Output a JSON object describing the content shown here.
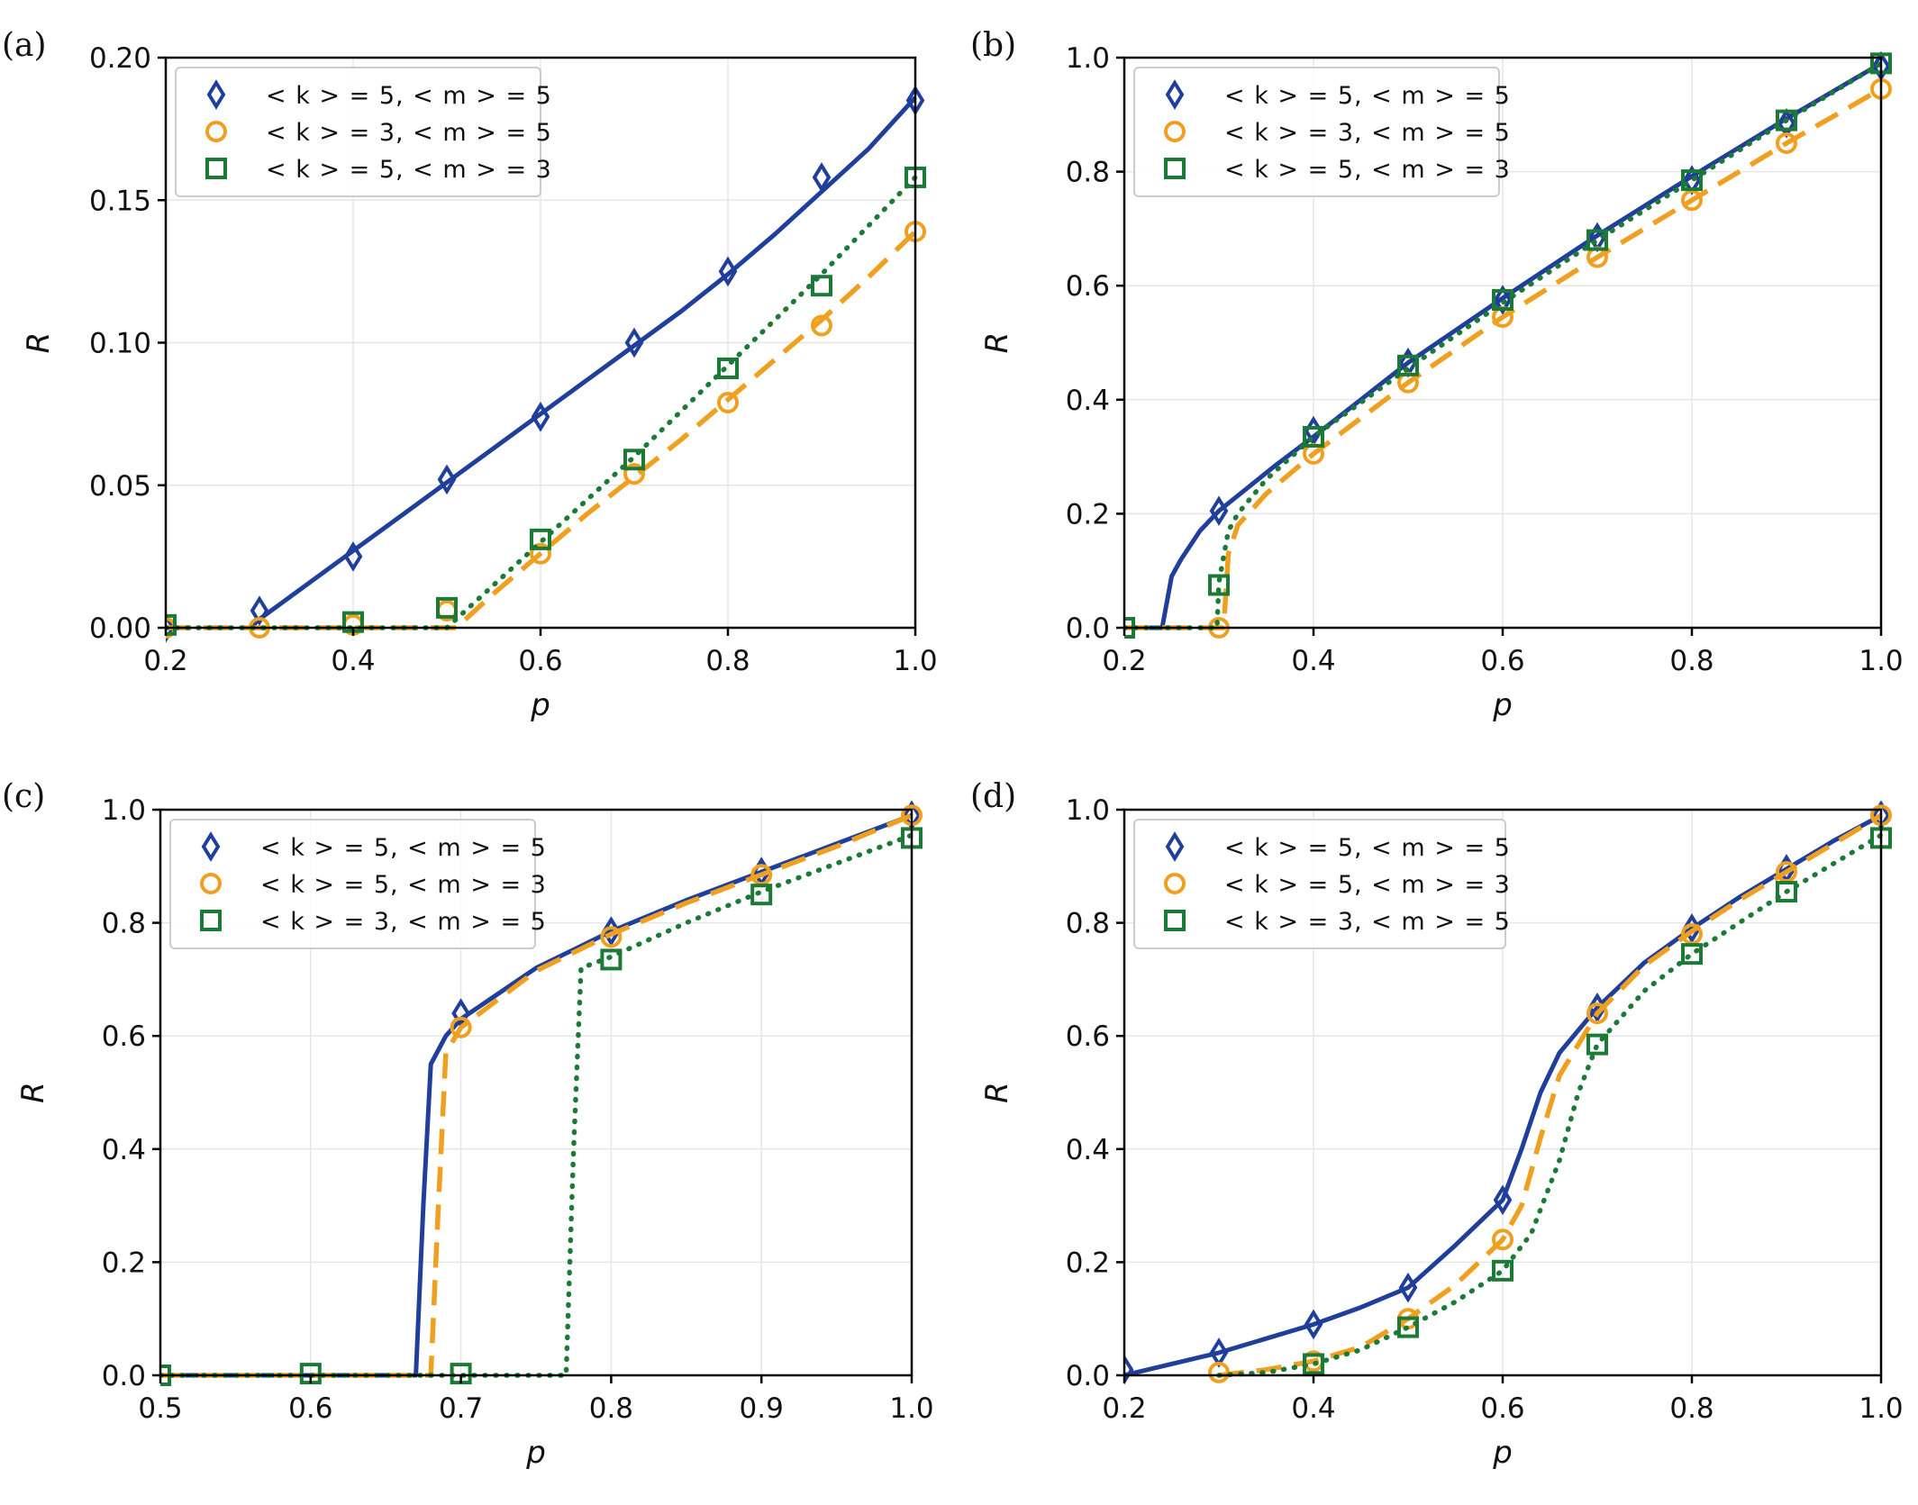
{
  "colors": {
    "blue": "#1f3f9a",
    "orange": "#f0a020",
    "green": "#1b7a35",
    "grid": "#e6e6e6",
    "axis": "#000000"
  },
  "chart_data": [
    {
      "panel": "(a)",
      "type": "line",
      "xlabel": "p",
      "ylabel": "R",
      "xlim": [
        0.2,
        1.0
      ],
      "ylim": [
        0.0,
        0.2
      ],
      "xticks": [
        "0.2",
        "0.4",
        "0.6",
        "0.8",
        "1.0"
      ],
      "yticks": [
        "0.00",
        "0.05",
        "0.10",
        "0.15",
        "0.20"
      ],
      "xtick_values": [
        0.2,
        0.4,
        0.6,
        0.8,
        1.0
      ],
      "ytick_values": [
        0.0,
        0.05,
        0.1,
        0.15,
        0.2
      ],
      "grid": true,
      "legend_position": "top-left",
      "series": [
        {
          "name": "< k > = 5,  < m > = 5",
          "color_key": "blue",
          "marker": "diamond",
          "line": "solid",
          "x": [
            0.2,
            0.3,
            0.4,
            0.5,
            0.6,
            0.7,
            0.8,
            0.9,
            1.0
          ],
          "y": [
            0.0,
            0.006,
            0.025,
            0.052,
            0.074,
            0.1,
            0.125,
            0.158,
            0.185
          ],
          "curve_x": [
            0.29,
            0.3,
            0.35,
            0.4,
            0.45,
            0.5,
            0.55,
            0.6,
            0.65,
            0.7,
            0.75,
            0.8,
            0.85,
            0.9,
            0.95,
            1.0
          ],
          "curve_y": [
            0.0,
            0.003,
            0.015,
            0.027,
            0.039,
            0.051,
            0.063,
            0.075,
            0.087,
            0.099,
            0.111,
            0.124,
            0.138,
            0.153,
            0.168,
            0.186
          ]
        },
        {
          "name": "< k > = 3,  < m > = 5",
          "color_key": "orange",
          "marker": "circle",
          "line": "dashed",
          "x": [
            0.2,
            0.3,
            0.4,
            0.5,
            0.6,
            0.7,
            0.8,
            0.9,
            1.0
          ],
          "y": [
            0.0,
            0.0,
            0.001,
            0.006,
            0.026,
            0.054,
            0.079,
            0.106,
            0.139
          ],
          "curve_x": [
            0.2,
            0.51,
            0.55,
            0.6,
            0.65,
            0.7,
            0.75,
            0.8,
            0.85,
            0.9,
            0.95,
            1.0
          ],
          "curve_y": [
            0.0,
            0.0,
            0.012,
            0.026,
            0.04,
            0.053,
            0.066,
            0.08,
            0.094,
            0.108,
            0.123,
            0.139
          ]
        },
        {
          "name": "< k > = 5,  < m > = 3",
          "color_key": "green",
          "marker": "square",
          "line": "dotted",
          "x": [
            0.2,
            0.4,
            0.5,
            0.6,
            0.7,
            0.8,
            0.9,
            1.0
          ],
          "y": [
            0.001,
            0.002,
            0.007,
            0.031,
            0.059,
            0.091,
            0.12,
            0.158
          ],
          "curve_x": [
            0.2,
            0.5,
            0.55,
            0.6,
            0.65,
            0.7,
            0.75,
            0.8,
            0.85,
            0.9,
            0.95,
            1.0
          ],
          "curve_y": [
            0.0,
            0.0,
            0.015,
            0.03,
            0.045,
            0.06,
            0.076,
            0.092,
            0.108,
            0.124,
            0.141,
            0.158
          ]
        }
      ]
    },
    {
      "panel": "(b)",
      "type": "line",
      "xlabel": "p",
      "ylabel": "R",
      "xlim": [
        0.2,
        1.0
      ],
      "ylim": [
        0.0,
        1.0
      ],
      "xticks": [
        "0.2",
        "0.4",
        "0.6",
        "0.8",
        "1.0"
      ],
      "yticks": [
        "0.0",
        "0.2",
        "0.4",
        "0.6",
        "0.8",
        "1.0"
      ],
      "xtick_values": [
        0.2,
        0.4,
        0.6,
        0.8,
        1.0
      ],
      "ytick_values": [
        0.0,
        0.2,
        0.4,
        0.6,
        0.8,
        1.0
      ],
      "grid": true,
      "legend_position": "top-left",
      "series": [
        {
          "name": "< k > = 5,  < m > = 5",
          "color_key": "blue",
          "marker": "diamond",
          "line": "solid",
          "x": [
            0.3,
            0.4,
            0.5,
            0.6,
            0.7,
            0.8,
            0.9,
            1.0
          ],
          "y": [
            0.205,
            0.345,
            0.465,
            0.575,
            0.685,
            0.785,
            0.885,
            0.985
          ],
          "curve_x": [
            0.2,
            0.24,
            0.25,
            0.26,
            0.28,
            0.3,
            0.33,
            0.36,
            0.4,
            0.45,
            0.5,
            0.6,
            0.7,
            0.8,
            0.9,
            1.0
          ],
          "curve_y": [
            0.0,
            0.0,
            0.09,
            0.12,
            0.17,
            0.205,
            0.245,
            0.285,
            0.335,
            0.4,
            0.465,
            0.578,
            0.688,
            0.792,
            0.893,
            0.99
          ]
        },
        {
          "name": "< k > = 3,  < m > = 5",
          "color_key": "orange",
          "marker": "circle",
          "line": "dashed",
          "x": [
            0.3,
            0.4,
            0.5,
            0.6,
            0.7,
            0.8,
            0.9,
            1.0
          ],
          "y": [
            0.0,
            0.305,
            0.43,
            0.545,
            0.65,
            0.75,
            0.85,
            0.945
          ],
          "curve_x": [
            0.2,
            0.305,
            0.31,
            0.32,
            0.35,
            0.4,
            0.5,
            0.6,
            0.7,
            0.8,
            0.9,
            1.0
          ],
          "curve_y": [
            0.0,
            0.0,
            0.13,
            0.18,
            0.235,
            0.305,
            0.43,
            0.545,
            0.65,
            0.75,
            0.85,
            0.945
          ]
        },
        {
          "name": "< k > = 5,  < m > = 3",
          "color_key": "green",
          "marker": "square",
          "line": "dotted",
          "x": [
            0.2,
            0.3,
            0.4,
            0.5,
            0.6,
            0.7,
            0.8,
            0.9,
            1.0
          ],
          "y": [
            0.0,
            0.075,
            0.335,
            0.46,
            0.575,
            0.68,
            0.785,
            0.89,
            0.99
          ],
          "curve_x": [
            0.2,
            0.298,
            0.3,
            0.31,
            0.32,
            0.35,
            0.4,
            0.5,
            0.6,
            0.7,
            0.8,
            0.9,
            1.0
          ],
          "curve_y": [
            0.0,
            0.0,
            0.08,
            0.17,
            0.2,
            0.26,
            0.335,
            0.455,
            0.57,
            0.68,
            0.785,
            0.89,
            0.99
          ]
        }
      ]
    },
    {
      "panel": "(c)",
      "type": "line",
      "xlabel": "p",
      "ylabel": "R",
      "xlim": [
        0.5,
        1.0
      ],
      "ylim": [
        0.0,
        1.0
      ],
      "xticks": [
        "0.5",
        "0.6",
        "0.7",
        "0.8",
        "0.9",
        "1.0"
      ],
      "yticks": [
        "0.0",
        "0.2",
        "0.4",
        "0.6",
        "0.8",
        "1.0"
      ],
      "xtick_values": [
        0.5,
        0.6,
        0.7,
        0.8,
        0.9,
        1.0
      ],
      "ytick_values": [
        0.0,
        0.2,
        0.4,
        0.6,
        0.8,
        1.0
      ],
      "grid": true,
      "legend_position": "top-left",
      "series": [
        {
          "name": "< k > = 5,  < m > = 5",
          "color_key": "blue",
          "marker": "diamond",
          "line": "solid",
          "x": [
            0.7,
            0.8,
            0.9,
            1.0
          ],
          "y": [
            0.64,
            0.785,
            0.89,
            0.99
          ],
          "curve_x": [
            0.5,
            0.67,
            0.675,
            0.68,
            0.69,
            0.7,
            0.75,
            0.8,
            0.85,
            0.9,
            0.95,
            1.0
          ],
          "curve_y": [
            0.0,
            0.0,
            0.3,
            0.55,
            0.6,
            0.63,
            0.72,
            0.785,
            0.84,
            0.89,
            0.94,
            0.99
          ]
        },
        {
          "name": "< k > = 5,  < m > = 3",
          "color_key": "orange",
          "marker": "circle",
          "line": "dashed",
          "x": [
            0.7,
            0.8,
            0.9,
            1.0
          ],
          "y": [
            0.615,
            0.775,
            0.885,
            0.99
          ],
          "curve_x": [
            0.5,
            0.68,
            0.685,
            0.69,
            0.7,
            0.75,
            0.8,
            0.85,
            0.9,
            0.95,
            1.0
          ],
          "curve_y": [
            0.0,
            0.0,
            0.3,
            0.57,
            0.615,
            0.715,
            0.78,
            0.835,
            0.885,
            0.935,
            0.99
          ]
        },
        {
          "name": "< k > = 3,  < m > = 5",
          "color_key": "green",
          "marker": "square",
          "line": "dotted",
          "x": [
            0.5,
            0.6,
            0.7,
            0.8,
            0.9,
            1.0
          ],
          "y": [
            0.0,
            0.003,
            0.003,
            0.735,
            0.85,
            0.95
          ],
          "curve_x": [
            0.5,
            0.77,
            0.775,
            0.78,
            0.8,
            0.85,
            0.9,
            0.95,
            1.0
          ],
          "curve_y": [
            0.0,
            0.0,
            0.4,
            0.72,
            0.74,
            0.8,
            0.855,
            0.905,
            0.955
          ]
        }
      ]
    },
    {
      "panel": "(d)",
      "type": "line",
      "xlabel": "p",
      "ylabel": "R",
      "xlim": [
        0.2,
        1.0
      ],
      "ylim": [
        0.0,
        1.0
      ],
      "xticks": [
        "0.2",
        "0.4",
        "0.6",
        "0.8",
        "1.0"
      ],
      "yticks": [
        "0.0",
        "0.2",
        "0.4",
        "0.6",
        "0.8",
        "1.0"
      ],
      "xtick_values": [
        0.2,
        0.4,
        0.6,
        0.8,
        1.0
      ],
      "ytick_values": [
        0.0,
        0.2,
        0.4,
        0.6,
        0.8,
        1.0
      ],
      "grid": true,
      "legend_position": "top-left",
      "series": [
        {
          "name": "< k > = 5,  < m > = 5",
          "color_key": "blue",
          "marker": "diamond",
          "line": "solid",
          "x": [
            0.2,
            0.3,
            0.4,
            0.5,
            0.6,
            0.7,
            0.8,
            0.9,
            1.0
          ],
          "y": [
            0.01,
            0.04,
            0.09,
            0.155,
            0.31,
            0.65,
            0.79,
            0.895,
            0.99
          ],
          "curve_x": [
            0.2,
            0.25,
            0.3,
            0.35,
            0.4,
            0.45,
            0.5,
            0.55,
            0.6,
            0.62,
            0.64,
            0.66,
            0.7,
            0.75,
            0.8,
            0.85,
            0.9,
            0.95,
            1.0
          ],
          "curve_y": [
            0.0,
            0.02,
            0.04,
            0.065,
            0.09,
            0.12,
            0.155,
            0.23,
            0.31,
            0.4,
            0.5,
            0.57,
            0.65,
            0.73,
            0.79,
            0.845,
            0.895,
            0.945,
            0.99
          ]
        },
        {
          "name": "< k > = 5,  < m > = 3",
          "color_key": "orange",
          "marker": "circle",
          "line": "dashed",
          "x": [
            0.3,
            0.4,
            0.5,
            0.6,
            0.7,
            0.8,
            0.9,
            1.0
          ],
          "y": [
            0.005,
            0.025,
            0.1,
            0.24,
            0.64,
            0.78,
            0.89,
            0.99
          ],
          "curve_x": [
            0.3,
            0.35,
            0.4,
            0.45,
            0.5,
            0.55,
            0.6,
            0.62,
            0.64,
            0.66,
            0.7,
            0.75,
            0.8,
            0.85,
            0.9,
            0.95,
            1.0
          ],
          "curve_y": [
            0.0,
            0.01,
            0.025,
            0.05,
            0.1,
            0.16,
            0.24,
            0.3,
            0.42,
            0.53,
            0.64,
            0.725,
            0.785,
            0.84,
            0.89,
            0.94,
            0.99
          ]
        },
        {
          "name": "< k > = 3,  < m > = 5",
          "color_key": "green",
          "marker": "square",
          "line": "dotted",
          "x": [
            0.4,
            0.5,
            0.6,
            0.7,
            0.8,
            0.9,
            1.0
          ],
          "y": [
            0.02,
            0.085,
            0.185,
            0.585,
            0.745,
            0.855,
            0.95
          ],
          "curve_x": [
            0.3,
            0.35,
            0.4,
            0.45,
            0.5,
            0.55,
            0.6,
            0.63,
            0.66,
            0.68,
            0.7,
            0.75,
            0.8,
            0.85,
            0.9,
            0.95,
            1.0
          ],
          "curve_y": [
            0.0,
            0.005,
            0.02,
            0.045,
            0.085,
            0.13,
            0.185,
            0.25,
            0.38,
            0.5,
            0.585,
            0.68,
            0.745,
            0.8,
            0.855,
            0.905,
            0.955
          ]
        }
      ]
    }
  ]
}
